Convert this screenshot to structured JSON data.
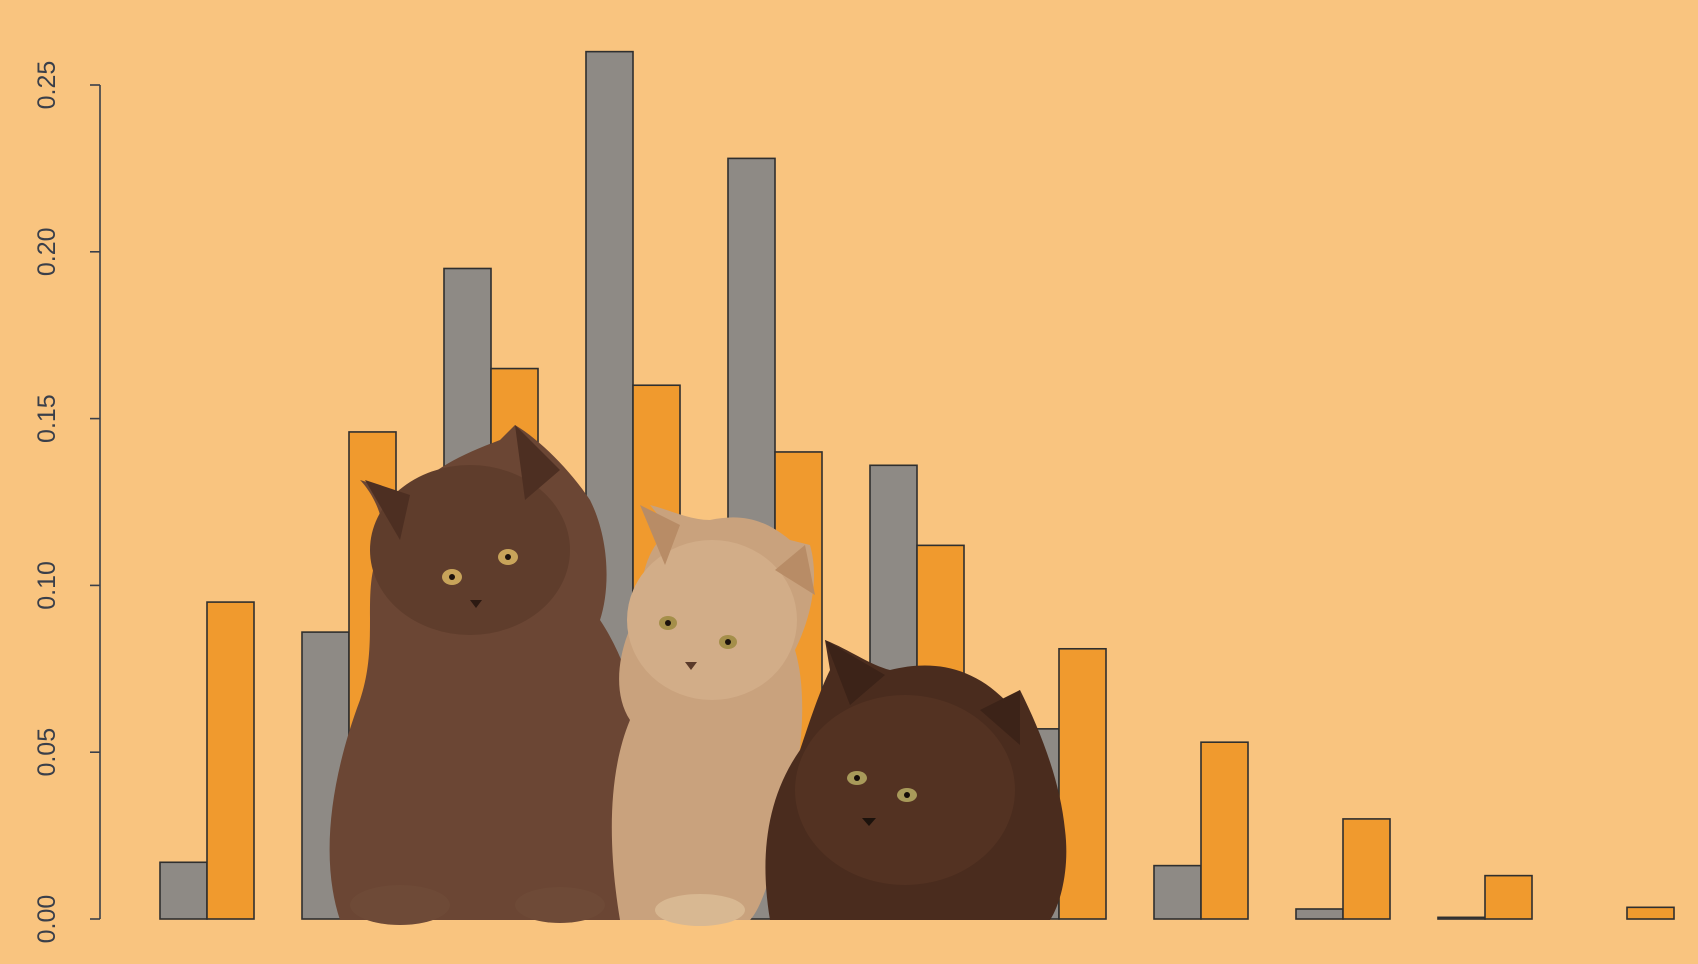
{
  "chart_data": {
    "type": "bar",
    "background_color": "#F9C47F",
    "series": [
      {
        "color": "#8E8A85",
        "values": [
          0.017,
          0.086,
          0.195,
          0.26,
          0.228,
          0.136,
          0.057,
          0.016,
          0.003,
          0.0005,
          0.0
        ]
      },
      {
        "color": "#F09A2E",
        "values": [
          0.095,
          0.146,
          0.165,
          0.16,
          0.14,
          0.112,
          0.081,
          0.053,
          0.03,
          0.013,
          0.0035
        ]
      }
    ],
    "y_ticks": [
      "0.00",
      "0.05",
      "0.10",
      "0.15",
      "0.20",
      "0.25"
    ],
    "ylim": [
      0,
      0.25
    ],
    "grid": false,
    "legend": "none"
  },
  "overlay": {
    "description": "kittens",
    "colors": [
      "#6b4634",
      "#5a3826",
      "#c9a27d",
      "#4a2c1e"
    ]
  }
}
